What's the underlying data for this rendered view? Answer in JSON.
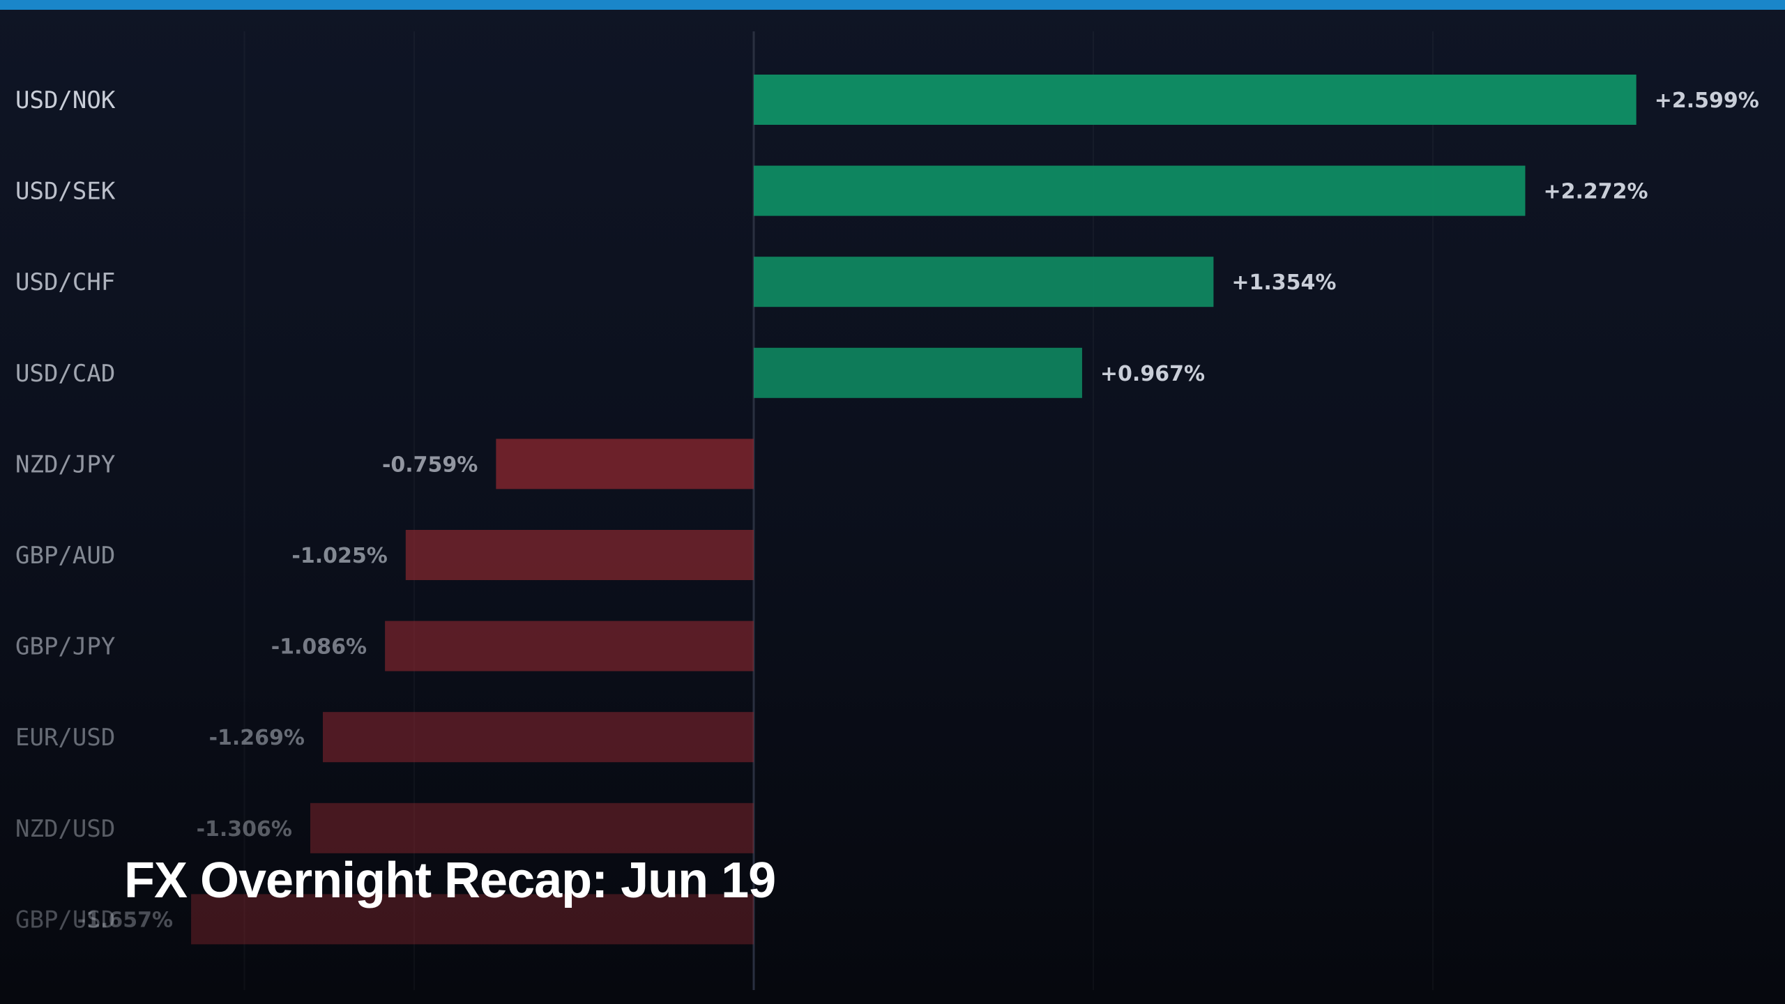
{
  "overlay": {
    "title": "FX Overnight Recap: Jun 19"
  },
  "colors": {
    "positive": "#0f8a62",
    "negative": "#8f2830",
    "accent": "#1a86c9"
  },
  "chart_data": {
    "type": "bar",
    "orientation": "horizontal",
    "title": "",
    "xlabel": "",
    "ylabel": "",
    "xlim": [
      -2.2,
      3.0
    ],
    "grid": true,
    "categories": [
      "USD/NOK",
      "USD/SEK",
      "USD/CHF",
      "USD/CAD",
      "NZD/JPY",
      "GBP/AUD",
      "GBP/JPY",
      "EUR/USD",
      "NZD/USD",
      "GBP/USD"
    ],
    "values": [
      2.599,
      2.272,
      1.354,
      0.967,
      -0.759,
      -1.025,
      -1.086,
      -1.269,
      -1.306,
      -1.657
    ],
    "value_labels": [
      "+2.599%",
      "+2.272%",
      "+1.354%",
      "+0.967%",
      "-0.759%",
      "-1.025%",
      "-1.086%",
      "-1.269%",
      "-1.306%",
      "-1.657%"
    ]
  }
}
